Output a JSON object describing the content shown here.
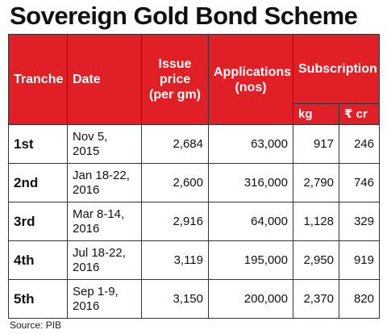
{
  "header": {
    "title": "Sovereign Gold Bond Scheme"
  },
  "table": {
    "columns": [
      "Tranche",
      "Date",
      "Issue price (per gm)",
      "Applications (nos)",
      "Subscription"
    ],
    "subcolumns": [
      "kg",
      "₹ cr"
    ],
    "rows": [
      [
        "1st",
        "Nov 5, 2015",
        "2,684",
        "63,000",
        "917",
        "246"
      ],
      [
        "2nd",
        "Jan 18-22, 2016",
        "2,600",
        "316,000",
        "2,790",
        "746"
      ],
      [
        "3rd",
        "Mar 8-14, 2016",
        "2,916",
        "64,000",
        "1,128",
        "329"
      ],
      [
        "4th",
        "Jul 18-22, 2016",
        "3,119",
        "195,000",
        "2,950",
        "919"
      ],
      [
        "5th",
        "Sep 1-9, 2016",
        "3,150",
        "200,000",
        "2,370",
        "820"
      ]
    ]
  },
  "source": "Source: PIB"
}
